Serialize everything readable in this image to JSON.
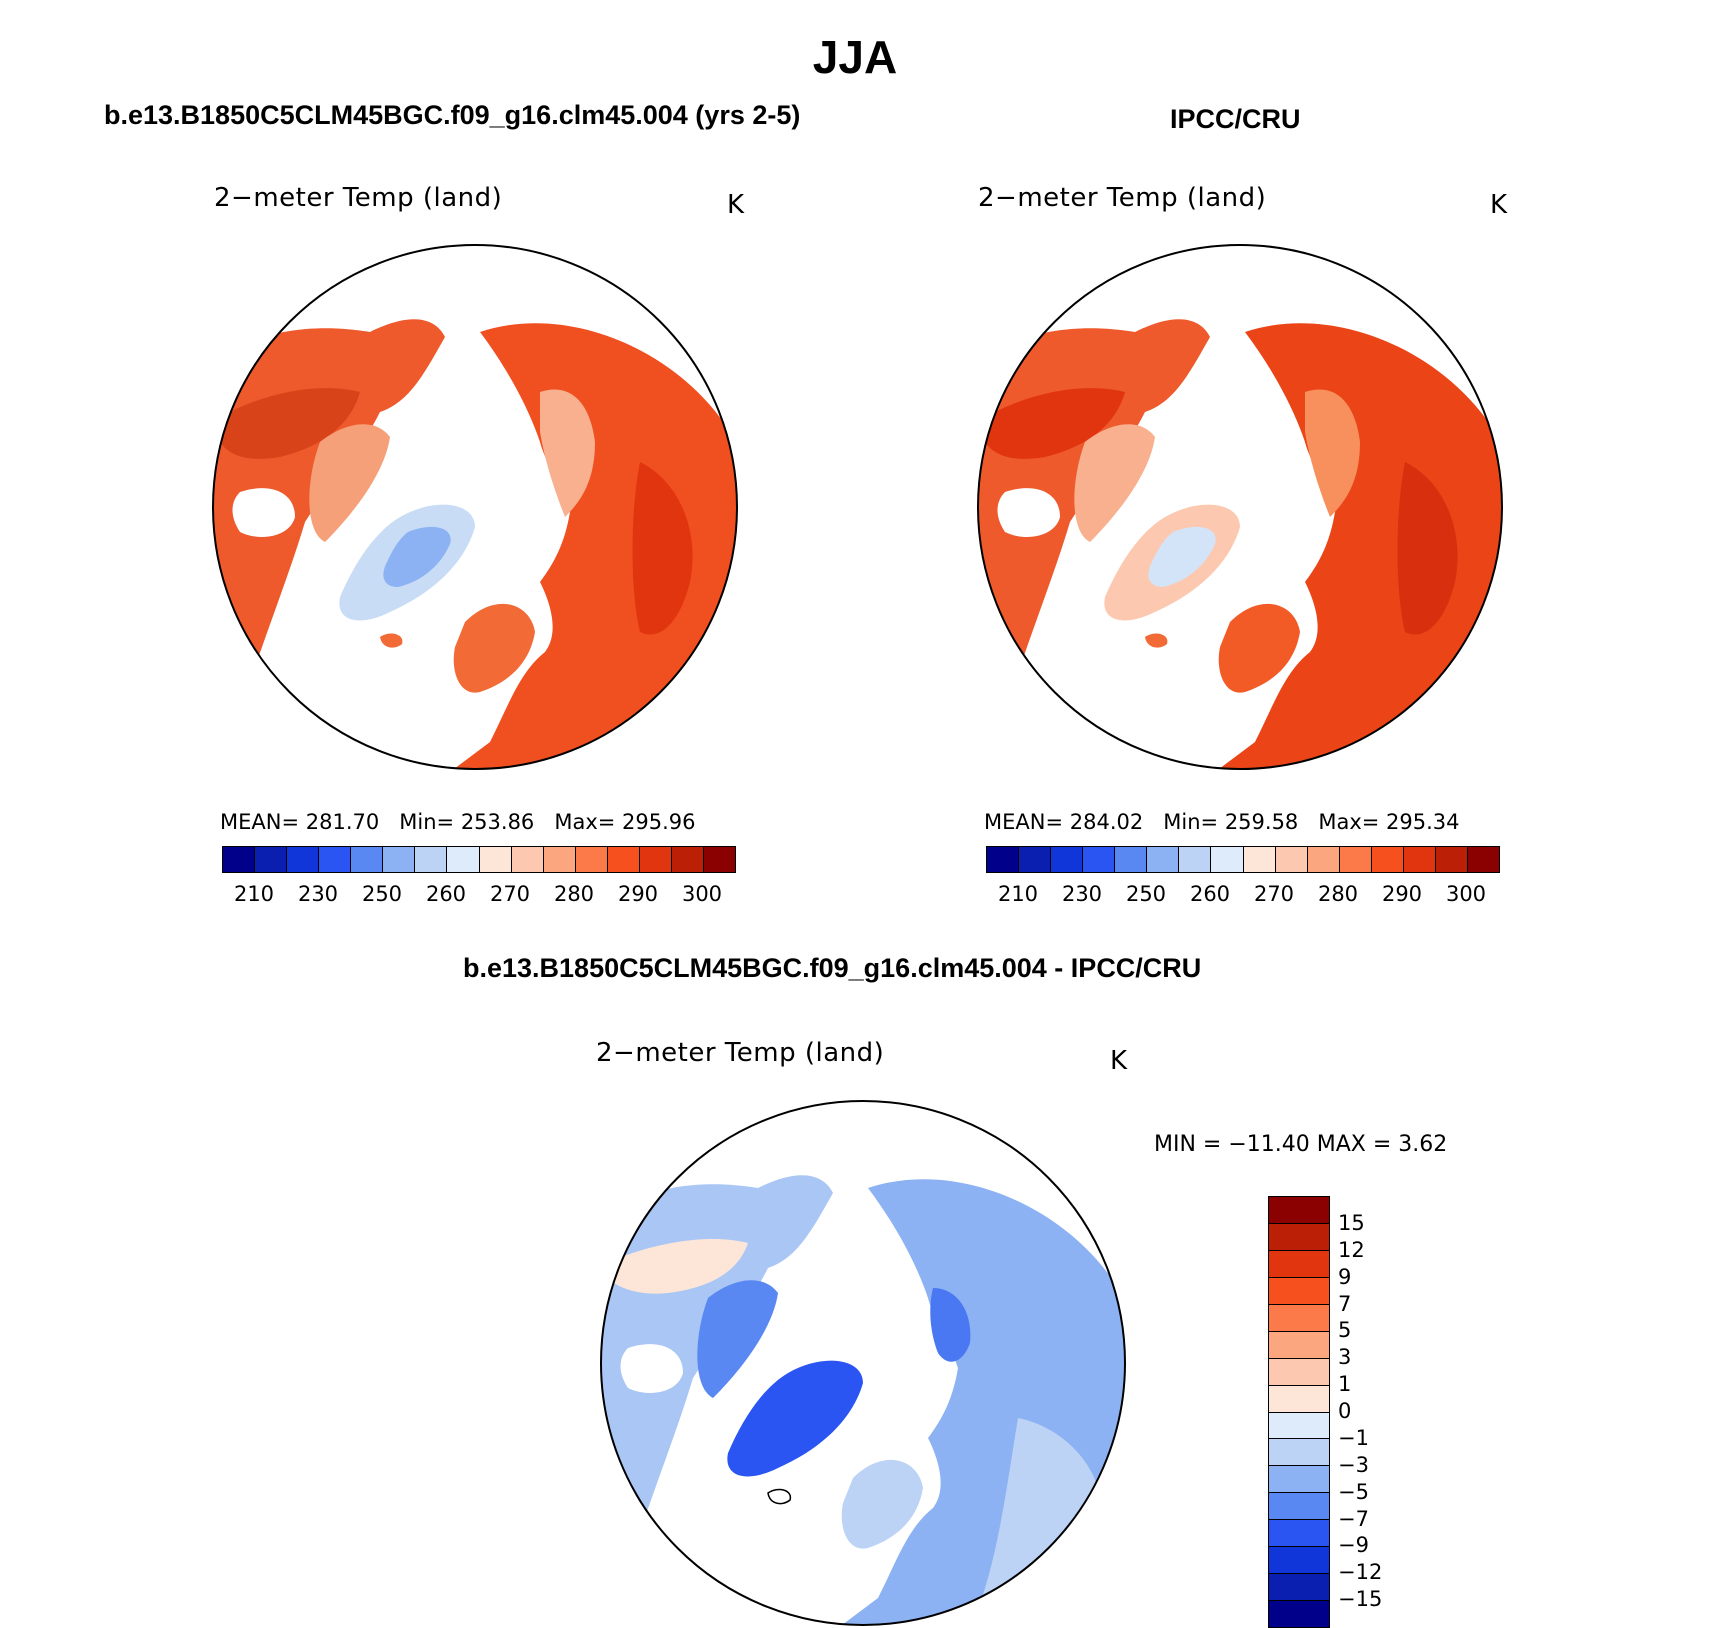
{
  "figure": {
    "season": "JJA",
    "model_title": "b.e13.B1850C5CLM45BGC.f09_g16.clm45.004 (yrs 2-5)",
    "obs_title": "IPCC/CRU",
    "diff_title": "b.e13.B1850C5CLM45BGC.f09_g16.clm45.004 - IPCC/CRU"
  },
  "panels": {
    "model": {
      "variable": "2−meter Temp (land)",
      "units": "K",
      "mean_label": "MEAN=",
      "mean": "281.70",
      "min_label": "Min=",
      "min": "253.86",
      "max_label": "Max=",
      "max": "295.96"
    },
    "obs": {
      "variable": "2−meter Temp (land)",
      "units": "K",
      "mean_label": "MEAN=",
      "mean": "284.02",
      "min_label": "Min=",
      "min": "259.58",
      "max_label": "Max=",
      "max": "295.34"
    },
    "diff": {
      "variable": "2−meter Temp (land)",
      "units": "K",
      "minmax_text": "MIN = −11.40 MAX =    3.62"
    }
  },
  "colorbars": {
    "absolute": {
      "colors": [
        "#00008b",
        "#0a1fb0",
        "#1035d8",
        "#2a55f2",
        "#5a88f2",
        "#8cb2f3",
        "#bdd3f6",
        "#ddebfb",
        "#fde6d8",
        "#fcc9b0",
        "#fca680",
        "#fc7a4a",
        "#f5501e",
        "#e13510",
        "#bb1f06",
        "#8b0000"
      ],
      "tick_labels": [
        "210",
        "230",
        "250",
        "260",
        "270",
        "280",
        "290",
        "300"
      ]
    },
    "difference": {
      "colors_top_to_bottom": [
        "#8b0000",
        "#bb1f06",
        "#e13510",
        "#f5501e",
        "#fc7a4a",
        "#fca680",
        "#fcc9b0",
        "#fde6d8",
        "#ddebfb",
        "#bdd3f6",
        "#8cb2f3",
        "#5a88f2",
        "#2a55f2",
        "#1035d8",
        "#0a1fb0",
        "#00008b"
      ],
      "tick_labels": [
        "15",
        "12",
        "9",
        "7",
        "5",
        "3",
        "1",
        "0",
        "−1",
        "−3",
        "−5",
        "−7",
        "−9",
        "−12",
        "−15"
      ]
    }
  },
  "chart_data": [
    {
      "type": "polar-map",
      "title": "2−meter Temp (land)",
      "subtitle": "b.e13.B1850C5CLM45BGC.f09_g16.clm45.004 (yrs 2-5)",
      "units": "K",
      "mean": 281.7,
      "min": 253.86,
      "max": 295.96,
      "colorbar_levels": [
        210,
        230,
        250,
        260,
        270,
        280,
        290,
        300
      ]
    },
    {
      "type": "polar-map",
      "title": "2−meter Temp (land)",
      "subtitle": "IPCC/CRU",
      "units": "K",
      "mean": 284.02,
      "min": 259.58,
      "max": 295.34,
      "colorbar_levels": [
        210,
        230,
        250,
        260,
        270,
        280,
        290,
        300
      ]
    },
    {
      "type": "polar-map",
      "title": "2−meter Temp (land)",
      "subtitle": "b.e13.B1850C5CLM45BGC.f09_g16.clm45.004 - IPCC/CRU",
      "units": "K",
      "min": -11.4,
      "max": 3.62,
      "colorbar_levels": [
        -15,
        -12,
        -9,
        -7,
        -5,
        -3,
        -1,
        0,
        1,
        3,
        5,
        7,
        9,
        12,
        15
      ]
    }
  ]
}
